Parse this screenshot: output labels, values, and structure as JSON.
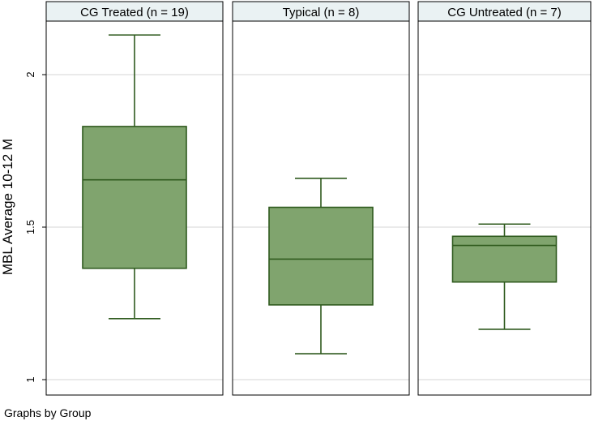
{
  "chart_data": {
    "type": "box",
    "ylabel": "MBL Average 10-12 M",
    "ylim": [
      0.98,
      2.18
    ],
    "yticks": [
      {
        "value": 1,
        "label": "1"
      },
      {
        "value": 1.5,
        "label": "1.5"
      },
      {
        "value": 2,
        "label": "2"
      }
    ],
    "grid": true,
    "box_color": "#80a46e",
    "line_color": "#2f5a1e",
    "header_color": "#eaf2f3",
    "note": "Graphs by Group",
    "panels": [
      {
        "title": "CG Treated (n = 19)",
        "whisker_low": 1.2,
        "q1": 1.365,
        "median": 1.655,
        "q3": 1.83,
        "whisker_high": 2.13
      },
      {
        "title": "Typical (n = 8)",
        "whisker_low": 1.085,
        "q1": 1.245,
        "median": 1.395,
        "q3": 1.565,
        "whisker_high": 1.66
      },
      {
        "title": "CG Untreated (n = 7)",
        "whisker_low": 1.165,
        "q1": 1.32,
        "median": 1.44,
        "q3": 1.47,
        "whisker_high": 1.51
      }
    ]
  }
}
